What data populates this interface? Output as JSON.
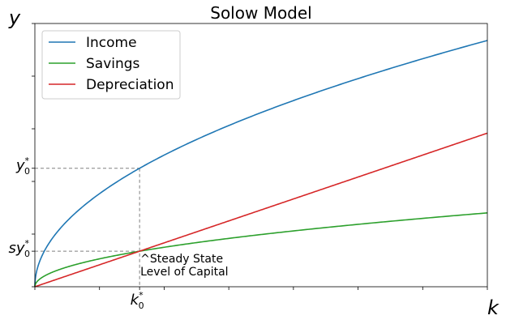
{
  "chart_data": {
    "type": "line",
    "title": "Solow Model",
    "xlabel": "k",
    "ylabel": "y",
    "xlim": [
      0,
      3.5
    ],
    "ylim": [
      0,
      2
    ],
    "grid": false,
    "legend_position": "top-left",
    "x_tick_values": [
      0,
      0.5,
      1,
      1.5,
      2,
      2.5,
      3,
      3.5
    ],
    "y_tick_values": [
      0,
      0.4,
      0.8,
      1.2,
      1.6,
      2
    ],
    "series": [
      {
        "name": "Income",
        "color": "#1f77b4",
        "function": "sqrt",
        "x": [
          0,
          0.01,
          0.05,
          0.1,
          0.2,
          0.3,
          0.5,
          0.7,
          0.81,
          1,
          1.25,
          1.5,
          1.75,
          2,
          2.25,
          2.5,
          2.75,
          3,
          3.25,
          3.5
        ],
        "values": [
          0,
          0.1,
          0.224,
          0.316,
          0.447,
          0.548,
          0.707,
          0.837,
          0.9,
          1,
          1.118,
          1.225,
          1.323,
          1.414,
          1.5,
          1.581,
          1.658,
          1.732,
          1.803,
          1.871
        ]
      },
      {
        "name": "Savings",
        "color": "#2ca02c",
        "function": "0.3*sqrt",
        "x": [
          0,
          0.01,
          0.05,
          0.1,
          0.2,
          0.3,
          0.5,
          0.7,
          0.81,
          1,
          1.25,
          1.5,
          1.75,
          2,
          2.25,
          2.5,
          2.75,
          3,
          3.25,
          3.5
        ],
        "values": [
          0,
          0.03,
          0.067,
          0.095,
          0.134,
          0.164,
          0.212,
          0.251,
          0.27,
          0.3,
          0.335,
          0.367,
          0.397,
          0.424,
          0.45,
          0.474,
          0.497,
          0.52,
          0.541,
          0.561
        ]
      },
      {
        "name": "Depreciation",
        "color": "#d62728",
        "function": "linear",
        "x": [
          0,
          3.5
        ],
        "values": [
          0,
          1.167
        ]
      }
    ],
    "steady_state": {
      "k": 0.81,
      "y": 0.9,
      "sy": 0.27,
      "k_label": "k",
      "k_sub": "0",
      "y_label": "y",
      "y_sub": "0",
      "sy_label": "sy",
      "sy_sub": "0",
      "star": "*",
      "guide_color": "#808080"
    },
    "annotation": {
      "line1": "^Steady State",
      "line2": "Level of Capital"
    }
  }
}
